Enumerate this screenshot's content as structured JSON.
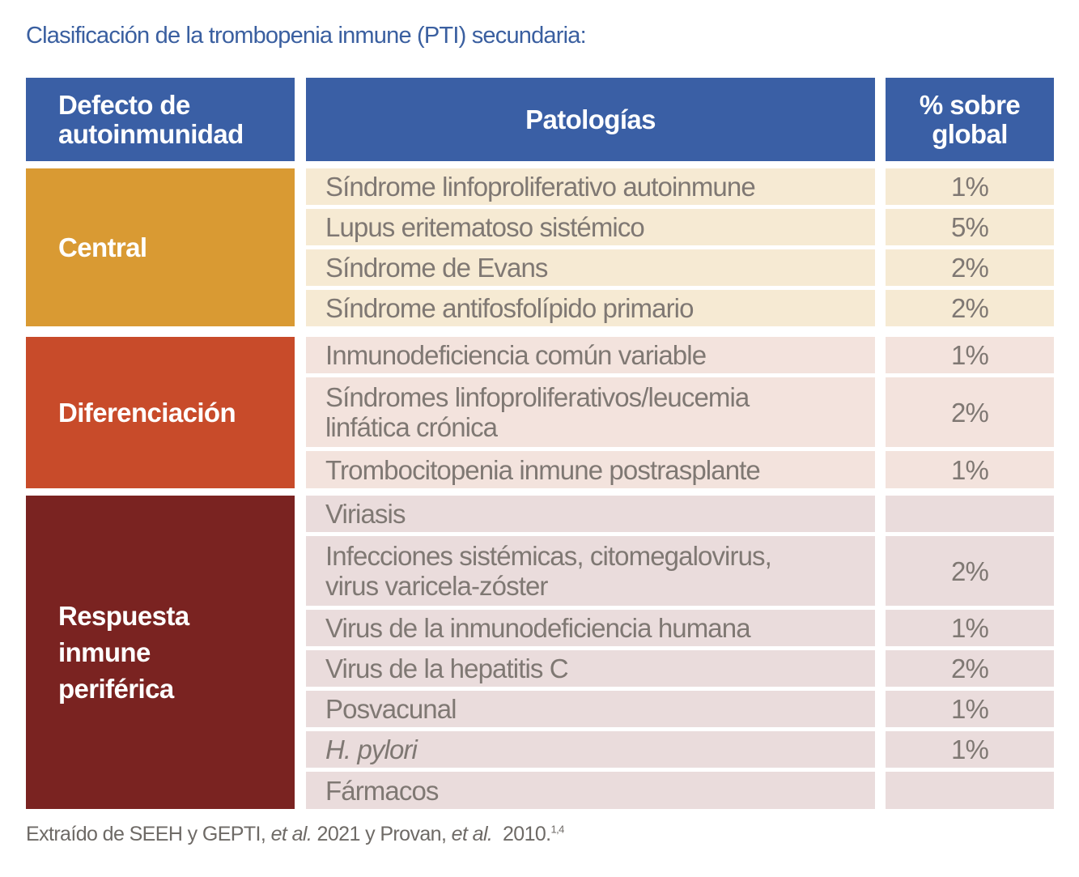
{
  "title": "Clasificación de la trombopenia inmune (PTI) secundaria:",
  "colors": {
    "header_bg": "#3a5fa5",
    "title_text": "#3a5fa0",
    "central": "#d99a33",
    "diferenciacion": "#c84b2a",
    "respuesta": "#7a2321",
    "central_row": "#f6ead3",
    "diferenciacion_row": "#f3e3dd",
    "respuesta_row": "#eadcdc",
    "body_text": "#7f7873"
  },
  "headers": {
    "defect_line1": "Defecto de",
    "defect_line2": "autoinmunidad",
    "pathologies": "Patologías",
    "pct_line1": "% sobre",
    "pct_line2": "global"
  },
  "groups": [
    {
      "name": "Central",
      "rows": [
        {
          "pathology": "Síndrome linfoproliferativo autoinmune",
          "pct": "1%"
        },
        {
          "pathology": "Lupus eritematoso sistémico",
          "pct": "5%"
        },
        {
          "pathology": "Síndrome de Evans",
          "pct": "2%"
        },
        {
          "pathology": "Síndrome antifosfolípido primario",
          "pct": "2%"
        }
      ]
    },
    {
      "name": "Diferenciación",
      "rows": [
        {
          "pathology": "Inmunodeficiencia común variable",
          "pct": "1%"
        },
        {
          "pathology_line1": "Síndromes linfoproliferativos/leucemia",
          "pathology_line2": "linfática crónica",
          "pct": "2%"
        },
        {
          "pathology": "Trombocitopenia inmune postrasplante",
          "pct": "1%"
        }
      ]
    },
    {
      "name_line1": "Respuesta",
      "name_line2": "inmune",
      "name_line3": "periférica",
      "rows": [
        {
          "pathology": "Viriasis",
          "pct": ""
        },
        {
          "pathology_line1": "Infecciones sistémicas, citomegalovirus,",
          "pathology_line2": "virus varicela-zóster",
          "pct": "2%"
        },
        {
          "pathology": "Virus de la inmunodeficiencia humana",
          "pct": "1%"
        },
        {
          "pathology": "Virus de la hepatitis C",
          "pct": "2%"
        },
        {
          "pathology": "Posvacunal",
          "pct": "1%"
        },
        {
          "pathology": "H. pylori",
          "pct": "1%"
        },
        {
          "pathology": "Fármacos",
          "pct": ""
        }
      ]
    }
  ],
  "footer": {
    "part1": "Extraído de SEEH y GEPTI, ",
    "etal1": "et al.",
    "part2": " 2021 y Provan, ",
    "etal2": "et al.",
    "part3": "  2010.",
    "refs": "1,4"
  }
}
